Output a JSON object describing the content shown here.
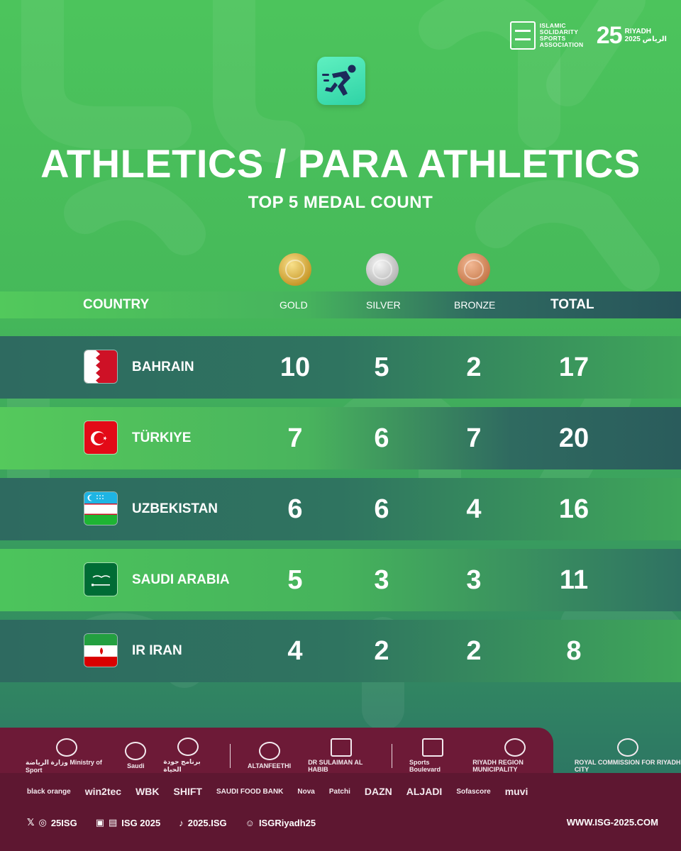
{
  "header": {
    "isg_logo_text": "ISLAMIC\nSOLIDARITY\nSPORTS\nASSOCIATION",
    "riyadh_number": "25",
    "riyadh_text": "RIYADH\nالرياض 2025"
  },
  "title": "ATHLETICS / PARA ATHLETICS",
  "subtitle": "TOP 5 MEDAL COUNT",
  "table": {
    "columns": {
      "country": "COUNTRY",
      "gold": "GOLD",
      "silver": "SILVER",
      "bronze": "BRONZE",
      "total": "TOTAL"
    },
    "rows": [
      {
        "country": "BAHRAIN",
        "gold": "10",
        "silver": "5",
        "bronze": "2",
        "total": "17"
      },
      {
        "country": "TÜRKIYE",
        "gold": "7",
        "silver": "6",
        "bronze": "7",
        "total": "20"
      },
      {
        "country": "UZBEKISTAN",
        "gold": "6",
        "silver": "6",
        "bronze": "4",
        "total": "16"
      },
      {
        "country": "SAUDI ARABIA",
        "gold": "5",
        "silver": "3",
        "bronze": "3",
        "total": "11"
      },
      {
        "country": "IR IRAN",
        "gold": "4",
        "silver": "2",
        "bronze": "2",
        "total": "8"
      }
    ]
  },
  "sponsors_row1": [
    {
      "text": "وزارة الرياضة Ministry of Sport"
    },
    {
      "text": "Saudi"
    },
    {
      "text": "برنامج جودة الحياة"
    },
    {
      "text": "ALTANFEETHI"
    },
    {
      "text": "DR SULAIMAN AL HABIB"
    },
    {
      "text": "Sports Boulevard"
    },
    {
      "text": "RIYADH REGION MUNICIPALITY"
    },
    {
      "text": "ROYAL COMMISSION FOR RIYADH CITY"
    }
  ],
  "sponsors_row2": [
    "black orange",
    "win2tec",
    "WBK",
    "SHIFT",
    "SAUDI FOOD BANK",
    "Nova",
    "Patchi",
    "DAZN",
    "ALJADI",
    "Sofascore",
    "muvi"
  ],
  "social": {
    "x_ig": "25ISG",
    "in_fb": "ISG 2025",
    "tiktok": "2025.ISG",
    "snap": "ISGRiyadh25"
  },
  "website": "WWW.ISG-2025.COM",
  "colors": {
    "bg_green": "#4cc45c",
    "dark_teal": "#2f6a60",
    "maroon": "#6d1a37",
    "icon_mint": "#3ee0b0"
  }
}
